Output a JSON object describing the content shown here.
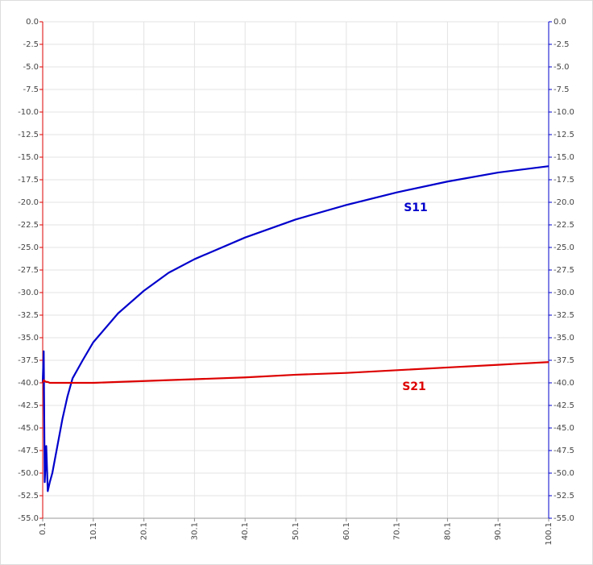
{
  "chart_data": {
    "type": "line",
    "x": [
      0.1,
      0.3,
      0.5,
      0.8,
      1.1,
      1.5,
      2,
      3,
      4,
      5,
      6,
      8,
      10.1,
      15,
      20.1,
      25,
      30.1,
      40.1,
      50.1,
      60.1,
      70.1,
      80.1,
      90.1,
      100.1
    ],
    "series": [
      {
        "name": "S11",
        "color": "#0000cc",
        "axis": "y2",
        "values": [
          -40,
          -36.5,
          -51,
          -47,
          -52,
          -51,
          -50,
          -47,
          -44,
          -41.5,
          -39.5,
          -37.5,
          -35.5,
          -32.3,
          -29.8,
          -27.8,
          -26.3,
          -23.9,
          -21.9,
          -20.3,
          -18.9,
          -17.7,
          -16.7,
          -16.0
        ]
      },
      {
        "name": "S21",
        "color": "#dd0000",
        "values": [
          -40,
          -39.7,
          -39.8,
          -39.9,
          -39.9,
          -40,
          -40,
          -40,
          -40,
          -40,
          -40,
          -40,
          -40,
          -39.9,
          -39.8,
          -39.7,
          -39.6,
          -39.4,
          -39.1,
          -38.9,
          -38.6,
          -38.3,
          -38.0,
          -37.7
        ]
      }
    ],
    "xlim": [
      0.1,
      100.1
    ],
    "xticks": [
      0.1,
      10.1,
      20.1,
      30.1,
      40.1,
      50.1,
      60.1,
      70.1,
      80.1,
      90.1,
      100.1
    ],
    "ylim": [
      -55,
      0
    ],
    "yticks": [
      {
        "value": 0,
        "label": "0.0"
      },
      -2.5,
      {
        "value": -5,
        "label": "-5.0"
      },
      -7.5,
      {
        "value": -10,
        "label": "-10.0"
      },
      -12.5,
      {
        "value": -15,
        "label": "-15.0"
      },
      -17.5,
      {
        "value": -20,
        "label": "-20.0"
      },
      -22.5,
      {
        "value": -25,
        "label": "-25.0"
      },
      -27.5,
      {
        "value": -30,
        "label": "-30.0"
      },
      -32.5,
      {
        "value": -35,
        "label": "-35.0"
      },
      -37.5,
      {
        "value": -40,
        "label": "-40.0"
      },
      -42.5,
      {
        "value": -45,
        "label": "-45.0"
      },
      -47.5,
      {
        "value": -50,
        "label": "-50.0"
      },
      -52.5,
      {
        "value": -55,
        "label": "-55.0"
      }
    ],
    "y2lim": [
      -55,
      0
    ],
    "y2ticks": [
      {
        "value": 0,
        "label": "0.0"
      },
      -2.5,
      {
        "value": -5,
        "label": "-5.0"
      },
      -7.5,
      {
        "value": -10,
        "label": "-10.0"
      },
      -12.5,
      {
        "value": -15,
        "label": "-15.0"
      },
      -17.5,
      {
        "value": -20,
        "label": "-20.0"
      },
      -22.5,
      {
        "value": -25,
        "label": "-25.0"
      },
      -27.5,
      {
        "value": -30,
        "label": "-30.0"
      },
      -32.5,
      {
        "value": -35,
        "label": "-35.0"
      },
      -37.5,
      {
        "value": -40,
        "label": "-40.0"
      },
      -42.5,
      {
        "value": -45,
        "label": "-45.0"
      },
      -47.5,
      {
        "value": -50,
        "label": "-50.0"
      },
      -52.5,
      {
        "value": -55,
        "label": "-55.0"
      }
    ],
    "grid": true,
    "y_axis_color": "#dd0000",
    "y2_axis_color": "#0000cc"
  }
}
